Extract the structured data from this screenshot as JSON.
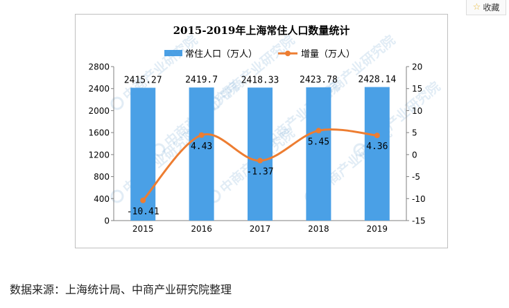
{
  "favorite_button": {
    "label": "收藏",
    "icon": "star-icon"
  },
  "watermark_text": "中商产业研究院",
  "source_text": "数据来源：上海统计局、中商产业研究院整理",
  "chart_data": {
    "type": "bar",
    "title": "2015-2019年上海常住人口数量统计",
    "categories": [
      "2015",
      "2016",
      "2017",
      "2018",
      "2019"
    ],
    "series": [
      {
        "name": "常住人口（万人）",
        "type": "bar",
        "axis": "left",
        "values": [
          2415.27,
          2419.7,
          2418.33,
          2423.78,
          2428.14
        ],
        "labels": [
          "2415.27",
          "2419.7",
          "2418.33",
          "2423.78",
          "2428.14"
        ]
      },
      {
        "name": "增量（万人）",
        "type": "line",
        "axis": "right",
        "smooth": true,
        "values": [
          -10.41,
          4.43,
          -1.37,
          5.45,
          4.36
        ],
        "labels": [
          "-10.41",
          "4.43",
          "-1.37",
          "5.45",
          "4.36"
        ]
      }
    ],
    "y_left": {
      "min": 0,
      "max": 2800,
      "ticks": [
        "0",
        "400",
        "800",
        "1200",
        "1600",
        "2000",
        "2400",
        "2800"
      ]
    },
    "y_right": {
      "min": -15,
      "max": 20,
      "ticks": [
        "-15",
        "-10",
        "-5",
        "0",
        "5",
        "10",
        "15",
        "20"
      ]
    },
    "legend_position": "top",
    "grid": false,
    "colors": {
      "bar": "#4aa0e6",
      "line": "#ed7d31"
    }
  }
}
